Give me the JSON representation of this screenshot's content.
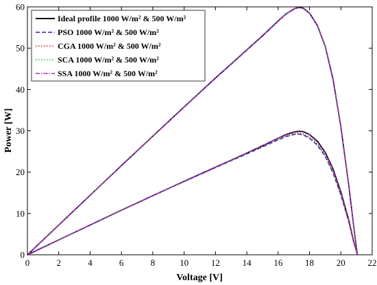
{
  "chart_data": {
    "type": "line",
    "xlabel": "Voltage [V]",
    "ylabel": "Power [W]",
    "xlim": [
      0,
      22
    ],
    "ylim": [
      0,
      60
    ],
    "xticks": [
      0,
      2,
      4,
      6,
      8,
      10,
      12,
      14,
      16,
      18,
      20,
      22
    ],
    "yticks": [
      0,
      10,
      20,
      30,
      40,
      50,
      60
    ],
    "grid": false,
    "legend_position": "top-left",
    "series": [
      {
        "name": "Ideal profile 1000 W/m² & 500 W/m²",
        "color": "#000000",
        "style": "solid",
        "curves": [
          [
            [
              0,
              0
            ],
            [
              2,
              7.2
            ],
            [
              4,
              14.4
            ],
            [
              6,
              21.6
            ],
            [
              8,
              28.7
            ],
            [
              10,
              35.8
            ],
            [
              12,
              42.8
            ],
            [
              14,
              49.6
            ],
            [
              15,
              53.0
            ],
            [
              16,
              56.6
            ],
            [
              16.5,
              58.3
            ],
            [
              17,
              59.5
            ],
            [
              17.3,
              59.9
            ],
            [
              17.6,
              59.7
            ],
            [
              18,
              58.5
            ],
            [
              18.5,
              55.5
            ],
            [
              19,
              50.5
            ],
            [
              19.5,
              42.5
            ],
            [
              20,
              31.0
            ],
            [
              20.5,
              17.0
            ],
            [
              20.8,
              7.5
            ],
            [
              21.0,
              1.5
            ],
            [
              21.05,
              0
            ]
          ],
          [
            [
              0,
              0
            ],
            [
              2,
              3.6
            ],
            [
              4,
              7.2
            ],
            [
              6,
              10.8
            ],
            [
              8,
              14.3
            ],
            [
              10,
              17.8
            ],
            [
              12,
              21.2
            ],
            [
              14,
              24.6
            ],
            [
              15,
              26.4
            ],
            [
              16,
              28.2
            ],
            [
              16.5,
              29.1
            ],
            [
              17,
              29.7
            ],
            [
              17.3,
              29.9
            ],
            [
              17.6,
              29.8
            ],
            [
              18,
              29.1
            ],
            [
              18.5,
              27.5
            ],
            [
              19,
              24.8
            ],
            [
              19.5,
              20.8
            ],
            [
              20,
              15.2
            ],
            [
              20.5,
              8.5
            ],
            [
              20.8,
              3.5
            ],
            [
              21.0,
              0.8
            ],
            [
              21.05,
              0
            ]
          ]
        ]
      },
      {
        "name": "PSO 1000 W/m² & 500 W/m²",
        "color": "#1f1fbf",
        "style": "dashed",
        "curves": [
          [
            [
              0,
              0
            ],
            [
              2,
              7.2
            ],
            [
              4,
              14.4
            ],
            [
              6,
              21.6
            ],
            [
              8,
              28.7
            ],
            [
              10,
              35.7
            ],
            [
              12,
              42.7
            ],
            [
              14,
              49.5
            ],
            [
              15,
              52.9
            ],
            [
              16,
              56.5
            ],
            [
              16.5,
              58.2
            ],
            [
              17,
              59.4
            ],
            [
              17.3,
              59.8
            ],
            [
              17.6,
              59.6
            ],
            [
              18,
              58.4
            ],
            [
              18.5,
              55.4
            ],
            [
              19,
              50.4
            ],
            [
              19.5,
              42.4
            ],
            [
              20,
              30.9
            ],
            [
              20.5,
              16.9
            ],
            [
              20.8,
              7.4
            ],
            [
              21.0,
              1.4
            ],
            [
              21.05,
              0
            ]
          ],
          [
            [
              0,
              0
            ],
            [
              2,
              3.6
            ],
            [
              4,
              7.2
            ],
            [
              6,
              10.8
            ],
            [
              8,
              14.3
            ],
            [
              10,
              17.7
            ],
            [
              12,
              21.1
            ],
            [
              14,
              24.4
            ],
            [
              15,
              26.1
            ],
            [
              16,
              27.8
            ],
            [
              16.5,
              28.6
            ],
            [
              17,
              29.1
            ],
            [
              17.3,
              29.2
            ],
            [
              17.6,
              29.0
            ],
            [
              18,
              28.2
            ],
            [
              18.5,
              26.5
            ],
            [
              19,
              23.8
            ],
            [
              19.5,
              19.8
            ],
            [
              20,
              14.4
            ],
            [
              20.5,
              8.0
            ],
            [
              20.8,
              3.2
            ],
            [
              21.0,
              0.7
            ],
            [
              21.05,
              0
            ]
          ]
        ]
      },
      {
        "name": "CGA 1000 W/m² & 500 W/m²",
        "color": "#b21f1f",
        "style": "dotted",
        "curves": [
          [
            [
              0,
              0
            ],
            [
              2,
              7.2
            ],
            [
              4,
              14.4
            ],
            [
              6,
              21.6
            ],
            [
              8,
              28.7
            ],
            [
              10,
              35.8
            ],
            [
              12,
              42.8
            ],
            [
              14,
              49.6
            ],
            [
              15,
              53.0
            ],
            [
              16,
              56.6
            ],
            [
              16.5,
              58.3
            ],
            [
              17,
              59.5
            ],
            [
              17.3,
              59.9
            ],
            [
              17.6,
              59.7
            ],
            [
              18,
              58.5
            ],
            [
              18.5,
              55.5
            ],
            [
              19,
              50.5
            ],
            [
              19.5,
              42.5
            ],
            [
              20,
              31.0
            ],
            [
              20.5,
              17.0
            ],
            [
              20.8,
              7.5
            ],
            [
              21.0,
              1.5
            ],
            [
              21.05,
              0
            ]
          ],
          [
            [
              0,
              0
            ],
            [
              2,
              3.6
            ],
            [
              4,
              7.2
            ],
            [
              6,
              10.8
            ],
            [
              8,
              14.3
            ],
            [
              10,
              17.8
            ],
            [
              12,
              21.2
            ],
            [
              14,
              24.5
            ],
            [
              15,
              26.2
            ],
            [
              16,
              28.0
            ],
            [
              16.5,
              28.8
            ],
            [
              17,
              29.3
            ],
            [
              17.3,
              29.4
            ],
            [
              17.6,
              29.2
            ],
            [
              18,
              28.4
            ],
            [
              18.5,
              26.8
            ],
            [
              19,
              24.1
            ],
            [
              19.5,
              20.1
            ],
            [
              20,
              14.6
            ],
            [
              20.5,
              8.1
            ],
            [
              20.8,
              3.3
            ],
            [
              21.0,
              0.7
            ],
            [
              21.05,
              0
            ]
          ]
        ]
      },
      {
        "name": "SCA 1000 W/m² & 500 W/m²",
        "color": "#1fbf1f",
        "style": "dotted",
        "curves": [
          [
            [
              0,
              0
            ],
            [
              2,
              7.2
            ],
            [
              4,
              14.4
            ],
            [
              6,
              21.6
            ],
            [
              8,
              28.7
            ],
            [
              10,
              35.8
            ],
            [
              12,
              42.8
            ],
            [
              14,
              49.6
            ],
            [
              15,
              53.0
            ],
            [
              16,
              56.6
            ],
            [
              16.5,
              58.3
            ],
            [
              17,
              59.5
            ],
            [
              17.3,
              59.9
            ],
            [
              17.6,
              59.7
            ],
            [
              18,
              58.5
            ],
            [
              18.5,
              55.5
            ],
            [
              19,
              50.5
            ],
            [
              19.5,
              42.5
            ],
            [
              20,
              31.0
            ],
            [
              20.5,
              17.0
            ],
            [
              20.8,
              7.5
            ],
            [
              21.0,
              1.5
            ],
            [
              21.05,
              0
            ]
          ],
          [
            [
              0,
              0
            ],
            [
              2,
              3.6
            ],
            [
              4,
              7.2
            ],
            [
              6,
              10.8
            ],
            [
              8,
              14.3
            ],
            [
              10,
              17.8
            ],
            [
              12,
              21.2
            ],
            [
              14,
              24.5
            ],
            [
              15,
              26.3
            ],
            [
              16,
              28.1
            ],
            [
              16.5,
              28.9
            ],
            [
              17,
              29.4
            ],
            [
              17.3,
              29.5
            ],
            [
              17.6,
              29.3
            ],
            [
              18,
              28.5
            ],
            [
              18.5,
              26.9
            ],
            [
              19,
              24.2
            ],
            [
              19.5,
              20.2
            ],
            [
              20,
              14.7
            ],
            [
              20.5,
              8.2
            ],
            [
              20.8,
              3.3
            ],
            [
              21.0,
              0.7
            ],
            [
              21.05,
              0
            ]
          ]
        ]
      },
      {
        "name": "SSA 1000 W/m² & 500 W/m²",
        "color": "#bf1fbf",
        "style": "dashdot",
        "curves": [
          [
            [
              0,
              0
            ],
            [
              2,
              7.2
            ],
            [
              4,
              14.4
            ],
            [
              6,
              21.6
            ],
            [
              8,
              28.7
            ],
            [
              10,
              35.8
            ],
            [
              12,
              42.8
            ],
            [
              14,
              49.6
            ],
            [
              15,
              53.0
            ],
            [
              16,
              56.6
            ],
            [
              16.5,
              58.3
            ],
            [
              17,
              59.5
            ],
            [
              17.3,
              59.9
            ],
            [
              17.6,
              59.7
            ],
            [
              18,
              58.5
            ],
            [
              18.5,
              55.5
            ],
            [
              19,
              50.5
            ],
            [
              19.5,
              42.5
            ],
            [
              20,
              31.0
            ],
            [
              20.5,
              17.0
            ],
            [
              20.8,
              7.5
            ],
            [
              21.0,
              1.5
            ],
            [
              21.05,
              0
            ]
          ],
          [
            [
              0,
              0
            ],
            [
              2,
              3.6
            ],
            [
              4,
              7.2
            ],
            [
              6,
              10.8
            ],
            [
              8,
              14.3
            ],
            [
              10,
              17.8
            ],
            [
              12,
              21.2
            ],
            [
              14,
              24.6
            ],
            [
              15,
              26.4
            ],
            [
              16,
              28.2
            ],
            [
              16.5,
              29.0
            ],
            [
              17,
              29.6
            ],
            [
              17.3,
              29.8
            ],
            [
              17.6,
              29.7
            ],
            [
              18,
              29.0
            ],
            [
              18.5,
              27.3
            ],
            [
              19,
              24.6
            ],
            [
              19.5,
              20.6
            ],
            [
              20,
              15.0
            ],
            [
              20.5,
              8.4
            ],
            [
              20.8,
              3.4
            ],
            [
              21.0,
              0.8
            ],
            [
              21.05,
              0
            ]
          ]
        ]
      }
    ]
  }
}
